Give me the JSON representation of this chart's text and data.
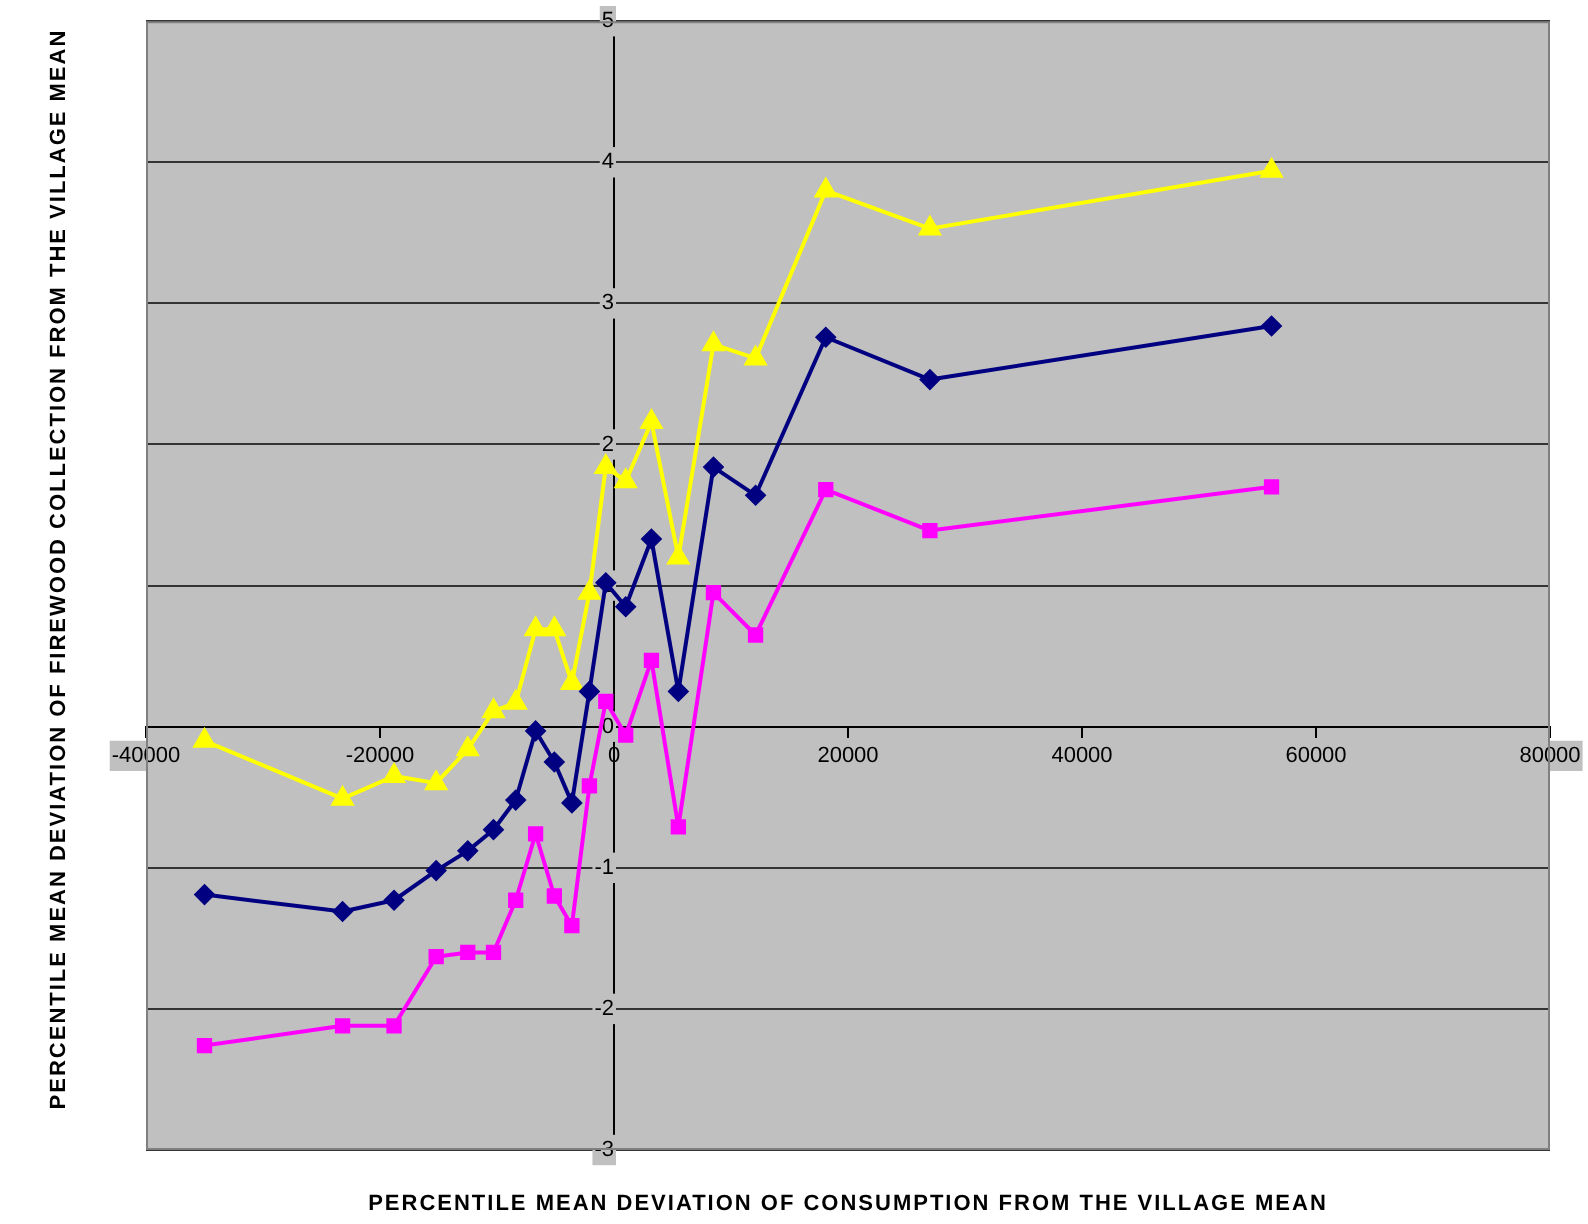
{
  "chart_data": {
    "type": "line",
    "xlabel": "PERCENTILE MEAN DEVIATION OF CONSUMPTION FROM THE VILLAGE MEAN",
    "ylabel": "PERCENTILE MEAN DEVIATION OF FIREWOOD COLLECTION FROM THE VILLAGE MEAN",
    "x": [
      -35000,
      -23200,
      -18800,
      -15200,
      -12500,
      -10300,
      -8400,
      -6700,
      -5100,
      -3600,
      -2100,
      -700,
      1000,
      3200,
      5500,
      8500,
      12100,
      18100,
      27000,
      56200
    ],
    "series": [
      {
        "color": "#000080",
        "marker": "diamond",
        "values": [
          -1.19,
          -1.31,
          -1.23,
          -1.02,
          -0.88,
          -0.73,
          -0.52,
          -0.03,
          -0.25,
          -0.54,
          0.25,
          1.02,
          0.85,
          1.33,
          0.25,
          1.84,
          1.64,
          2.76,
          2.46,
          2.84
        ]
      },
      {
        "color": "#ff00ff",
        "marker": "square",
        "values": [
          -2.26,
          -2.12,
          -2.12,
          -1.63,
          -1.6,
          -1.6,
          -1.23,
          -0.76,
          -1.2,
          -1.41,
          -0.42,
          0.18,
          -0.06,
          0.47,
          -0.71,
          0.95,
          0.65,
          1.68,
          1.39,
          1.7
        ]
      },
      {
        "color": "#ffff00",
        "marker": "triangle",
        "values": [
          -0.1,
          -0.51,
          -0.35,
          -0.4,
          -0.16,
          0.11,
          0.17,
          0.69,
          0.69,
          0.31,
          0.95,
          1.84,
          1.74,
          2.16,
          1.2,
          2.71,
          2.61,
          3.8,
          3.53,
          3.94
        ]
      }
    ],
    "xlim": [
      -40000,
      80000
    ],
    "xticks": [
      -40000,
      -20000,
      0,
      20000,
      40000,
      60000,
      80000
    ],
    "ylim": [
      -3,
      5
    ],
    "yticks": [
      -3,
      -2,
      -1,
      0,
      1,
      2,
      3,
      4,
      5
    ],
    "grid": "y",
    "legend": false,
    "line_style": "solid"
  }
}
